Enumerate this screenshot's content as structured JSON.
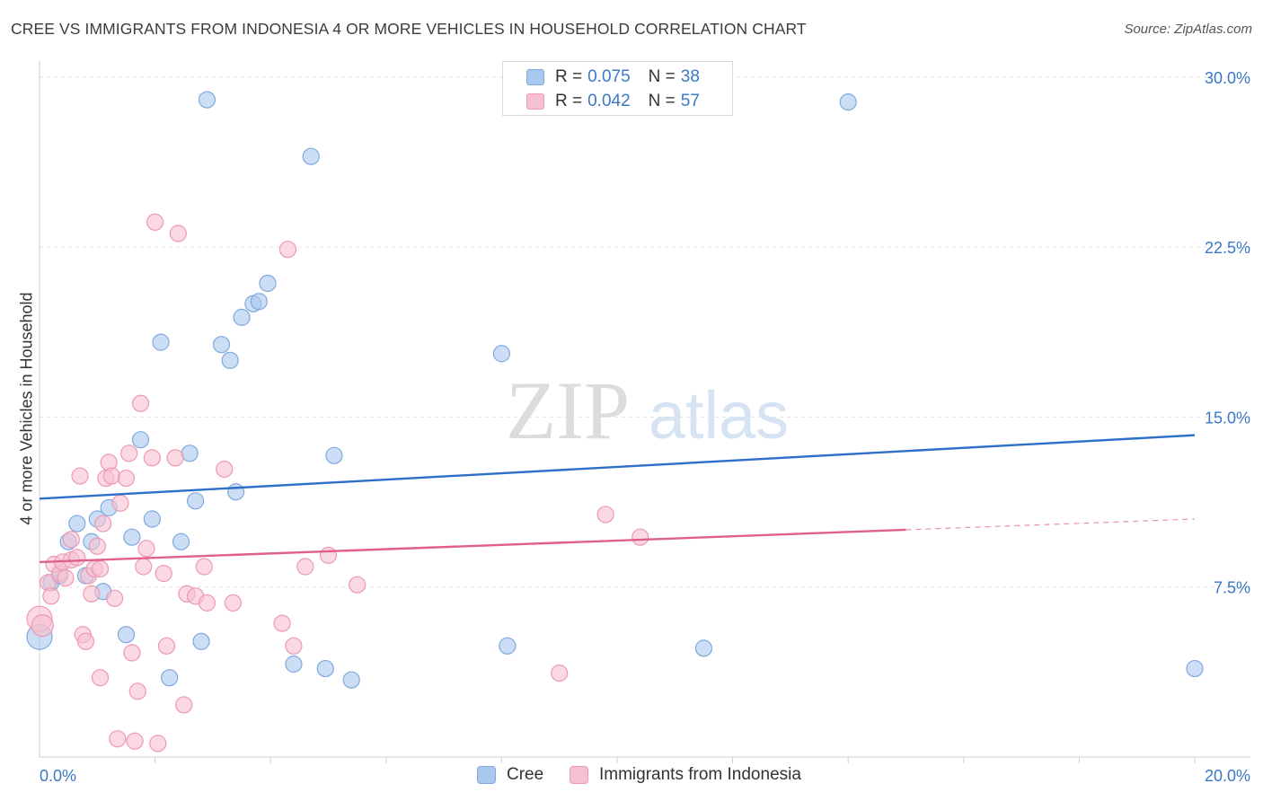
{
  "header": {
    "title": "CREE VS IMMIGRANTS FROM INDONESIA 4 OR MORE VEHICLES IN HOUSEHOLD CORRELATION CHART",
    "source": "Source: ZipAtlas.com"
  },
  "watermark": {
    "zip": "ZIP",
    "atlas": "atlas"
  },
  "stats_legend": [
    {
      "r_label": "R =",
      "r_value": "0.075",
      "n_label": "N =",
      "n_value": "38",
      "color": "#a9c8ee",
      "border": "#7fa9de"
    },
    {
      "r_label": "R =",
      "r_value": "0.042",
      "n_label": "N =",
      "n_value": "57",
      "color": "#f7c0d0",
      "border": "#ee98b2"
    }
  ],
  "chart_data": {
    "type": "scatter",
    "ylabel": "4 or more Vehicles in Household",
    "xlim": [
      0,
      20
    ],
    "ylim": [
      0,
      31.5
    ],
    "x_tick_labels": [
      {
        "value": 0,
        "label": "0.0%"
      },
      {
        "value": 20,
        "label": "20.0%"
      }
    ],
    "y_tick_labels": [
      {
        "value": 7.5,
        "label": "7.5%"
      },
      {
        "value": 15,
        "label": "15.0%"
      },
      {
        "value": 22.5,
        "label": "22.5%"
      },
      {
        "value": 30,
        "label": "30.0%"
      }
    ],
    "grid": true,
    "legend_position": "bottom-center",
    "series": [
      {
        "name": "Cree",
        "color": "#a9c8ee",
        "stroke": "#7fa9de",
        "trend_color": "#2e6fc9",
        "trend": {
          "x0": 0,
          "y0": 11.4,
          "x1": 20,
          "y1": 14.2,
          "solid_until": 20
        },
        "points": [
          [
            0.0,
            5.3,
            14
          ],
          [
            0.2,
            7.7,
            9
          ],
          [
            0.35,
            8.0,
            9
          ],
          [
            0.5,
            9.5,
            9
          ],
          [
            0.65,
            10.3,
            9
          ],
          [
            0.8,
            8.0,
            9
          ],
          [
            0.9,
            9.5,
            9
          ],
          [
            1.0,
            10.5,
            9
          ],
          [
            1.1,
            7.3,
            9
          ],
          [
            1.2,
            11.0,
            9
          ],
          [
            1.5,
            5.4,
            9
          ],
          [
            1.6,
            9.7,
            9
          ],
          [
            1.75,
            14.0,
            9
          ],
          [
            1.95,
            10.5,
            9
          ],
          [
            2.1,
            18.3,
            9
          ],
          [
            2.25,
            3.5,
            9
          ],
          [
            2.45,
            9.5,
            9
          ],
          [
            2.6,
            13.4,
            9
          ],
          [
            2.7,
            11.3,
            9
          ],
          [
            2.8,
            5.1,
            9
          ],
          [
            2.9,
            29.0,
            9
          ],
          [
            3.15,
            18.2,
            9
          ],
          [
            3.3,
            17.5,
            9
          ],
          [
            3.4,
            11.7,
            9
          ],
          [
            3.5,
            19.4,
            9
          ],
          [
            3.7,
            20.0,
            9
          ],
          [
            3.8,
            20.1,
            9
          ],
          [
            3.95,
            20.9,
            9
          ],
          [
            4.4,
            4.1,
            9
          ],
          [
            4.7,
            26.5,
            9
          ],
          [
            4.95,
            3.9,
            9
          ],
          [
            5.1,
            13.3,
            9
          ],
          [
            5.4,
            3.4,
            9
          ],
          [
            8.0,
            17.8,
            9
          ],
          [
            8.1,
            4.9,
            9
          ],
          [
            11.5,
            4.8,
            9
          ],
          [
            14.0,
            28.9,
            9
          ],
          [
            20.0,
            3.9,
            9
          ]
        ]
      },
      {
        "name": "Immigrants from Indonesia",
        "color": "#f7c0d0",
        "stroke": "#ee98b2",
        "trend_color": "#e0608a",
        "trend": {
          "x0": 0,
          "y0": 8.6,
          "x1": 20,
          "y1": 10.5,
          "solid_until": 15
        },
        "points": [
          [
            0.0,
            6.1,
            14
          ],
          [
            0.05,
            5.8,
            12
          ],
          [
            0.15,
            7.7,
            9
          ],
          [
            0.2,
            7.1,
            9
          ],
          [
            0.25,
            8.5,
            9
          ],
          [
            0.35,
            8.1,
            9
          ],
          [
            0.4,
            8.6,
            9
          ],
          [
            0.45,
            7.9,
            9
          ],
          [
            0.55,
            8.7,
            9
          ],
          [
            0.55,
            9.6,
            9
          ],
          [
            0.65,
            8.8,
            9
          ],
          [
            0.7,
            12.4,
            9
          ],
          [
            0.75,
            5.4,
            9
          ],
          [
            0.8,
            5.1,
            9
          ],
          [
            0.85,
            8.0,
            9
          ],
          [
            0.9,
            7.2,
            9
          ],
          [
            0.95,
            8.3,
            9
          ],
          [
            1.0,
            9.3,
            9
          ],
          [
            1.05,
            8.3,
            9
          ],
          [
            1.05,
            3.5,
            9
          ],
          [
            1.1,
            10.3,
            9
          ],
          [
            1.15,
            12.3,
            9
          ],
          [
            1.2,
            13.0,
            9
          ],
          [
            1.25,
            12.4,
            9
          ],
          [
            1.3,
            7.0,
            9
          ],
          [
            1.35,
            0.8,
            9
          ],
          [
            1.4,
            11.2,
            9
          ],
          [
            1.5,
            12.3,
            9
          ],
          [
            1.55,
            13.4,
            9
          ],
          [
            1.6,
            4.6,
            9
          ],
          [
            1.65,
            0.7,
            9
          ],
          [
            1.7,
            2.9,
            9
          ],
          [
            1.75,
            15.6,
            9
          ],
          [
            1.8,
            8.4,
            9
          ],
          [
            1.85,
            9.2,
            9
          ],
          [
            1.95,
            13.2,
            9
          ],
          [
            2.0,
            23.6,
            9
          ],
          [
            2.05,
            0.6,
            9
          ],
          [
            2.15,
            8.1,
            9
          ],
          [
            2.2,
            4.9,
            9
          ],
          [
            2.35,
            13.2,
            9
          ],
          [
            2.4,
            23.1,
            9
          ],
          [
            2.5,
            2.3,
            9
          ],
          [
            2.55,
            7.2,
            9
          ],
          [
            2.7,
            7.1,
            9
          ],
          [
            2.85,
            8.4,
            9
          ],
          [
            2.9,
            6.8,
            9
          ],
          [
            3.2,
            12.7,
            9
          ],
          [
            3.35,
            6.8,
            9
          ],
          [
            4.2,
            5.9,
            9
          ],
          [
            4.3,
            22.4,
            9
          ],
          [
            4.4,
            4.9,
            9
          ],
          [
            4.6,
            8.4,
            9
          ],
          [
            5.0,
            8.9,
            9
          ],
          [
            5.5,
            7.6,
            9
          ],
          [
            9.0,
            3.7,
            9
          ],
          [
            9.8,
            10.7,
            9
          ],
          [
            10.4,
            9.7,
            9
          ]
        ]
      }
    ]
  }
}
